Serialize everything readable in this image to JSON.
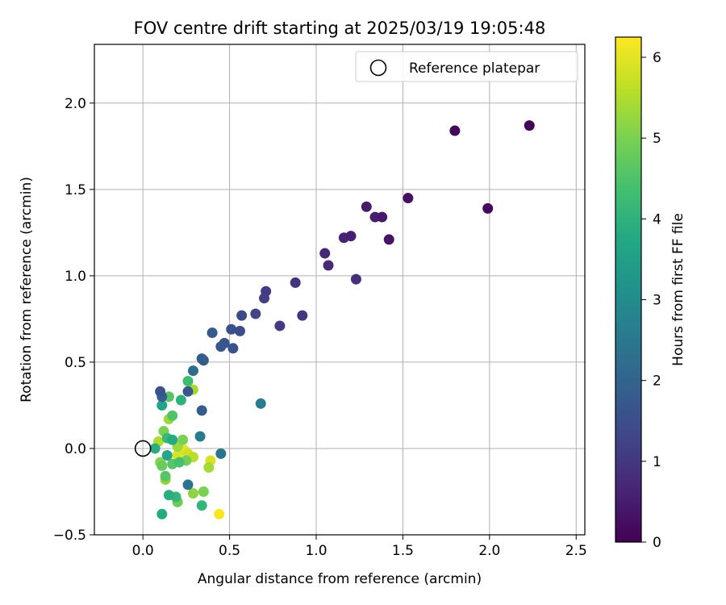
{
  "chart_data": {
    "type": "scatter",
    "title": "FOV centre drift starting at 2025/03/19 19:05:48",
    "xlabel": "Angular distance from reference (arcmin)",
    "ylabel": "Rotation from reference (arcmin)",
    "xlim": [
      -0.28,
      2.55
    ],
    "ylim": [
      -0.5,
      2.34
    ],
    "xticks": [
      "0.0",
      "0.5",
      "1.0",
      "1.5",
      "2.0",
      "2.5"
    ],
    "yticks": [
      "−0.5",
      "0.0",
      "0.5",
      "1.0",
      "1.5",
      "2.0"
    ],
    "grid": true,
    "legend": {
      "placement": "top-right",
      "entries": [
        "Reference platepar"
      ]
    },
    "reference_point": {
      "x": 0.0,
      "y": 0.0
    },
    "colorbar": {
      "label": "Hours from first FF file",
      "range": [
        0,
        6.25
      ],
      "ticks": [
        "0",
        "1",
        "2",
        "3",
        "4",
        "5",
        "6"
      ],
      "colormap": "viridis"
    },
    "points": [
      {
        "x": 2.23,
        "y": 1.87,
        "hours": 0.05
      },
      {
        "x": 1.8,
        "y": 1.84,
        "hours": 0.1
      },
      {
        "x": 1.99,
        "y": 1.39,
        "hours": 0.15
      },
      {
        "x": 1.53,
        "y": 1.45,
        "hours": 0.3
      },
      {
        "x": 1.42,
        "y": 1.21,
        "hours": 0.35
      },
      {
        "x": 1.38,
        "y": 1.34,
        "hours": 0.4
      },
      {
        "x": 1.34,
        "y": 1.34,
        "hours": 0.5
      },
      {
        "x": 1.29,
        "y": 1.4,
        "hours": 0.45
      },
      {
        "x": 1.2,
        "y": 1.23,
        "hours": 0.55
      },
      {
        "x": 1.16,
        "y": 1.22,
        "hours": 0.6
      },
      {
        "x": 1.05,
        "y": 1.13,
        "hours": 0.7
      },
      {
        "x": 1.07,
        "y": 1.06,
        "hours": 0.75
      },
      {
        "x": 1.23,
        "y": 0.98,
        "hours": 0.85
      },
      {
        "x": 0.88,
        "y": 0.96,
        "hours": 0.9
      },
      {
        "x": 0.92,
        "y": 0.77,
        "hours": 1.0
      },
      {
        "x": 0.79,
        "y": 0.71,
        "hours": 1.05
      },
      {
        "x": 0.71,
        "y": 0.91,
        "hours": 1.1
      },
      {
        "x": 0.7,
        "y": 0.87,
        "hours": 1.2
      },
      {
        "x": 0.65,
        "y": 0.78,
        "hours": 1.3
      },
      {
        "x": 0.57,
        "y": 0.77,
        "hours": 1.4
      },
      {
        "x": 0.56,
        "y": 0.68,
        "hours": 1.45
      },
      {
        "x": 0.51,
        "y": 0.69,
        "hours": 1.55
      },
      {
        "x": 0.52,
        "y": 0.58,
        "hours": 1.6
      },
      {
        "x": 0.47,
        "y": 0.61,
        "hours": 1.65
      },
      {
        "x": 0.45,
        "y": 0.59,
        "hours": 1.7
      },
      {
        "x": 0.4,
        "y": 0.67,
        "hours": 1.75
      },
      {
        "x": 0.35,
        "y": 0.51,
        "hours": 1.8
      },
      {
        "x": 0.34,
        "y": 0.52,
        "hours": 1.85
      },
      {
        "x": 0.29,
        "y": 0.45,
        "hours": 2.2
      },
      {
        "x": 0.26,
        "y": 0.33,
        "hours": 1.7
      },
      {
        "x": 0.1,
        "y": 0.33,
        "hours": 1.6
      },
      {
        "x": 0.11,
        "y": 0.3,
        "hours": 1.9
      },
      {
        "x": 0.11,
        "y": 0.25,
        "hours": 3.6
      },
      {
        "x": 0.34,
        "y": 0.22,
        "hours": 1.8
      },
      {
        "x": 0.68,
        "y": 0.26,
        "hours": 2.6
      },
      {
        "x": 0.33,
        "y": 0.07,
        "hours": 2.6
      },
      {
        "x": 0.45,
        "y": -0.03,
        "hours": 2.4
      },
      {
        "x": 0.26,
        "y": 0.39,
        "hours": 4.3
      },
      {
        "x": 0.29,
        "y": 0.34,
        "hours": 5.4
      },
      {
        "x": 0.15,
        "y": 0.3,
        "hours": 4.6
      },
      {
        "x": 0.22,
        "y": 0.28,
        "hours": 4.0
      },
      {
        "x": 0.17,
        "y": 0.19,
        "hours": 4.5
      },
      {
        "x": 0.15,
        "y": 0.17,
        "hours": 5.3
      },
      {
        "x": 0.12,
        "y": 0.1,
        "hours": 5.0
      },
      {
        "x": 0.14,
        "y": 0.06,
        "hours": 4.2
      },
      {
        "x": 0.17,
        "y": 0.05,
        "hours": 3.8
      },
      {
        "x": 0.09,
        "y": 0.04,
        "hours": 5.5
      },
      {
        "x": 0.07,
        "y": 0.0,
        "hours": 3.9
      },
      {
        "x": 0.2,
        "y": 0.01,
        "hours": 5.3
      },
      {
        "x": 0.23,
        "y": 0.05,
        "hours": 5.0
      },
      {
        "x": 0.24,
        "y": -0.01,
        "hours": 6.0
      },
      {
        "x": 0.26,
        "y": -0.03,
        "hours": 5.8
      },
      {
        "x": 0.29,
        "y": -0.05,
        "hours": 5.6
      },
      {
        "x": 0.2,
        "y": -0.04,
        "hours": 5.9
      },
      {
        "x": 0.21,
        "y": -0.08,
        "hours": 4.4
      },
      {
        "x": 0.14,
        "y": -0.04,
        "hours": 3.7
      },
      {
        "x": 0.11,
        "y": -0.1,
        "hours": 4.8
      },
      {
        "x": 0.1,
        "y": -0.08,
        "hours": 5.1
      },
      {
        "x": 0.17,
        "y": -0.09,
        "hours": 4.6
      },
      {
        "x": 0.25,
        "y": -0.07,
        "hours": 4.9
      },
      {
        "x": 0.39,
        "y": -0.07,
        "hours": 5.9
      },
      {
        "x": 0.38,
        "y": -0.11,
        "hours": 5.4
      },
      {
        "x": 0.13,
        "y": -0.16,
        "hours": 4.6
      },
      {
        "x": 0.13,
        "y": -0.18,
        "hours": 5.2
      },
      {
        "x": 0.26,
        "y": -0.21,
        "hours": 2.4
      },
      {
        "x": 0.15,
        "y": -0.27,
        "hours": 3.9
      },
      {
        "x": 0.19,
        "y": -0.28,
        "hours": 4.1
      },
      {
        "x": 0.2,
        "y": -0.31,
        "hours": 4.8
      },
      {
        "x": 0.29,
        "y": -0.26,
        "hours": 5.2
      },
      {
        "x": 0.35,
        "y": -0.25,
        "hours": 5.0
      },
      {
        "x": 0.34,
        "y": -0.33,
        "hours": 4.1
      },
      {
        "x": 0.11,
        "y": -0.38,
        "hours": 3.8
      },
      {
        "x": 0.44,
        "y": -0.38,
        "hours": 6.2
      }
    ]
  }
}
